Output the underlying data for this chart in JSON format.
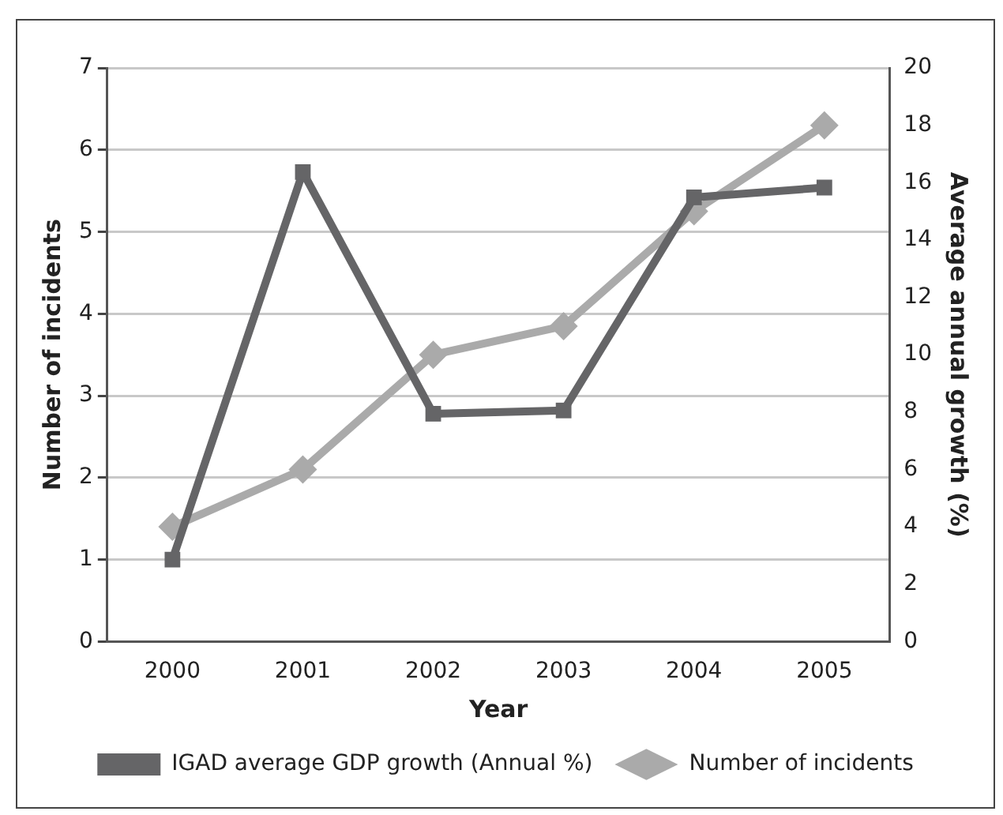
{
  "chart_data": {
    "type": "line",
    "xlabel": "Year",
    "ylabel": "Number of incidents",
    "y2label": "Average annual growth (%)",
    "categories": [
      "2000",
      "2001",
      "2002",
      "2003",
      "2004",
      "2005"
    ],
    "series": [
      {
        "name": "IGAD average GDP growth (Annual %)",
        "color": "#656567",
        "values": [
          1.0,
          5.73,
          2.78,
          2.82,
          5.42,
          5.54
        ],
        "marker": "square"
      },
      {
        "name": "Number of incidents",
        "color": "#aaaaaa",
        "values": [
          4,
          6,
          10,
          11,
          15,
          18
        ],
        "axis": "y2",
        "marker": "diamond"
      }
    ],
    "ylim": [
      0,
      7
    ],
    "yticks": [
      0,
      1,
      2,
      3,
      4,
      5,
      6,
      7
    ],
    "y2lim": [
      0,
      20
    ],
    "y2ticks": [
      0,
      2,
      4,
      6,
      8,
      10,
      12,
      14,
      16,
      18,
      20
    ],
    "grid": "y",
    "legend": "bottom",
    "line_style": "solid"
  }
}
